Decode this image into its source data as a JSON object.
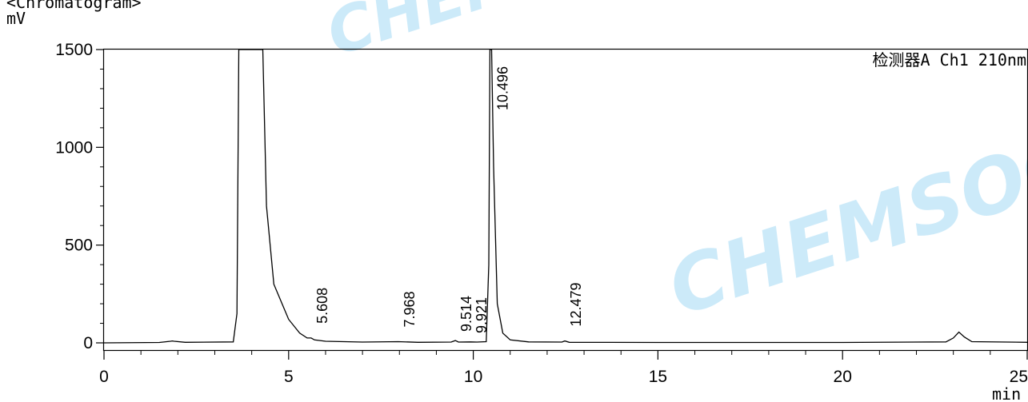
{
  "header": {
    "title": "<Chromatogram>",
    "y_unit": "mV",
    "x_unit": "min"
  },
  "detector_label": "检测器A Ch1 210nm",
  "watermark": {
    "text": "CHEMSOO",
    "color": "#1aa3e6"
  },
  "chart_data": {
    "type": "line",
    "title": "<Chromatogram>",
    "ylabel": "mV",
    "xlabel": "min",
    "xlim": [
      0,
      25
    ],
    "ylim": [
      0,
      1500
    ],
    "x_ticks": [
      0,
      5,
      10,
      15,
      20,
      25
    ],
    "y_ticks": [
      0,
      500,
      1000,
      1500
    ],
    "grid": false,
    "series": [
      {
        "x": [
          0,
          1.5,
          1.8,
          1.85,
          1.9,
          2.2,
          3.5,
          3.6,
          3.65,
          3.7,
          3.8,
          4.2,
          4.3,
          4.4,
          4.6,
          5.0,
          5.3,
          5.5,
          5.608,
          5.7,
          6.0,
          7.0,
          7.968,
          8.5,
          9.4,
          9.514,
          9.6,
          9.921,
          10.1,
          10.35,
          10.42,
          10.45,
          10.496,
          10.55,
          10.65,
          10.8,
          11.0,
          11.5,
          12.4,
          12.479,
          12.6,
          15.0,
          20.0,
          22.8,
          23.0,
          23.15,
          23.3,
          23.5,
          25.0
        ],
        "y": [
          0,
          2,
          8,
          10,
          8,
          3,
          5,
          150,
          1500,
          1500,
          1500,
          1500,
          1500,
          700,
          300,
          120,
          50,
          25,
          25,
          15,
          8,
          4,
          6,
          3,
          4,
          12,
          4,
          5,
          4,
          6,
          400,
          1500,
          1500,
          900,
          200,
          50,
          15,
          5,
          4,
          10,
          3,
          2,
          2,
          5,
          25,
          55,
          30,
          6,
          3
        ]
      }
    ],
    "peak_labels": [
      "5.608",
      "7.968",
      "9.514",
      "9.921",
      "10.496",
      "12.479"
    ],
    "peak_times": [
      5.608,
      7.968,
      9.514,
      9.921,
      10.496,
      12.479
    ],
    "peak_heights": [
      25,
      6,
      12,
      5,
      1500,
      10
    ]
  }
}
